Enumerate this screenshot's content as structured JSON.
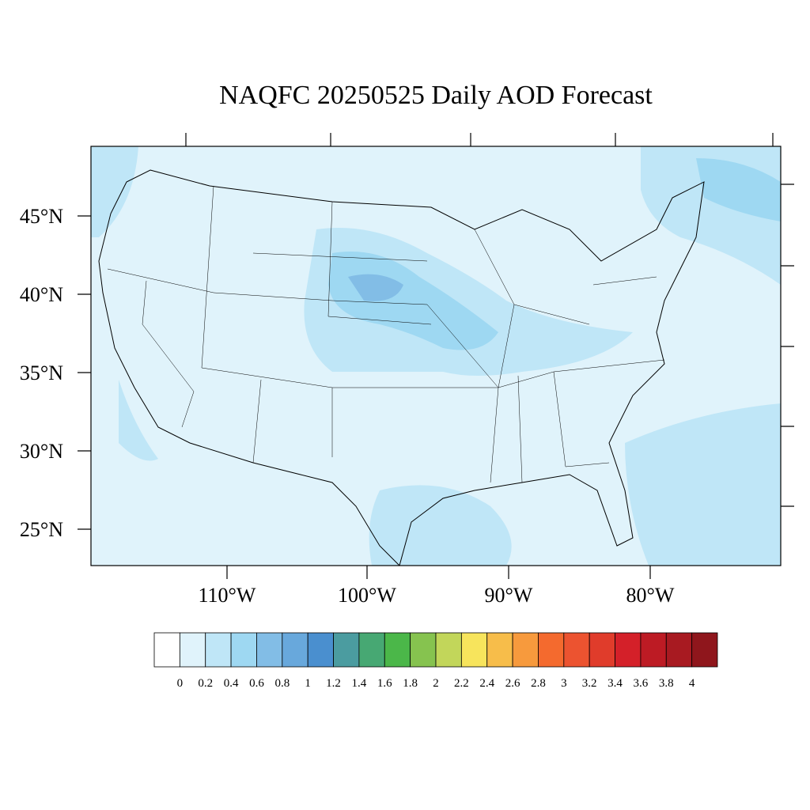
{
  "title": "NAQFC 20250525 Daily AOD Forecast",
  "lat_labels": [
    "45°N",
    "40°N",
    "35°N",
    "30°N",
    "25°N"
  ],
  "lon_labels": [
    "110°W",
    "100°W",
    "90°W",
    "80°W"
  ],
  "colorbar": {
    "levels": [
      0,
      0.2,
      0.4,
      0.6,
      0.8,
      1,
      1.2,
      1.4,
      1.6,
      1.8,
      2,
      2.2,
      2.4,
      2.6,
      2.8,
      3,
      3.2,
      3.4,
      3.6,
      3.8,
      4
    ],
    "colors": [
      "#ffffff",
      "#e0f3fb",
      "#bfe6f7",
      "#9ed8f2",
      "#82bde6",
      "#68a8dc",
      "#4a8fcf",
      "#4b9ca0",
      "#47a873",
      "#4bb749",
      "#86c34f",
      "#c2d65a",
      "#f7e45c",
      "#f7bd4a",
      "#f79a3d",
      "#f46a2e",
      "#ec5330",
      "#e03c2b",
      "#d42029",
      "#bd1b24",
      "#a81a21",
      "#8f161c"
    ]
  }
}
